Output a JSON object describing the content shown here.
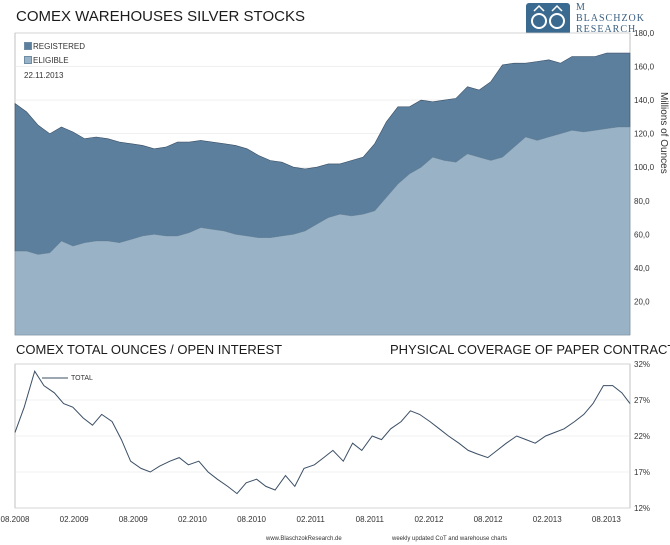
{
  "header": {
    "title": "COMEX WAREHOUSES SILVER STOCKS",
    "logo_letter": "M",
    "logo_line1": "BLASCHZOK",
    "logo_line2": "RESEARCH"
  },
  "colors": {
    "registered": "#5b7f9c",
    "eligible": "#9ab2c5",
    "line": "#3b4f66",
    "grid": "#dddddd"
  },
  "chart_data": [
    {
      "type": "area",
      "stacked": true,
      "title": "COMEX WAREHOUSES SILVER STOCKS",
      "ylabel": "Millions of Ounces",
      "ylim": [
        0,
        180
      ],
      "yticks": [
        "20,0",
        "40,0",
        "60,0",
        "80,0",
        "100,0",
        "120,0",
        "140,0",
        "160,0",
        "180,0"
      ],
      "date_label": "22.11.2013",
      "legend_position": "top-left",
      "x": [
        2008.6,
        2008.7,
        2008.8,
        2008.9,
        2009.0,
        2009.1,
        2009.2,
        2009.3,
        2009.4,
        2009.5,
        2009.6,
        2009.7,
        2009.8,
        2009.9,
        2010.0,
        2010.1,
        2010.2,
        2010.3,
        2010.4,
        2010.5,
        2010.6,
        2010.7,
        2010.8,
        2010.9,
        2011.0,
        2011.1,
        2011.2,
        2011.3,
        2011.4,
        2011.5,
        2011.6,
        2011.7,
        2011.8,
        2011.9,
        2012.0,
        2012.1,
        2012.2,
        2012.3,
        2012.4,
        2012.5,
        2012.6,
        2012.7,
        2012.8,
        2012.9,
        2013.0,
        2013.1,
        2013.2,
        2013.3,
        2013.4,
        2013.5,
        2013.6,
        2013.7,
        2013.8,
        2013.9
      ],
      "series": [
        {
          "name": "ELIGIBLE",
          "values": [
            50,
            50,
            48,
            49,
            56,
            53,
            55,
            56,
            56,
            55,
            57,
            59,
            60,
            59,
            59,
            61,
            64,
            63,
            62,
            60,
            59,
            58,
            58,
            59,
            60,
            62,
            66,
            70,
            72,
            71,
            72,
            74,
            82,
            90,
            96,
            100,
            106,
            104,
            103,
            108,
            106,
            104,
            106,
            112,
            118,
            116,
            118,
            120,
            122,
            121,
            122,
            123,
            124,
            124
          ]
        },
        {
          "name": "REGISTERED",
          "values": [
            88,
            83,
            77,
            71,
            68,
            68,
            62,
            62,
            61,
            60,
            57,
            54,
            51,
            53,
            56,
            54,
            52,
            52,
            52,
            53,
            52,
            49,
            46,
            44,
            40,
            37,
            34,
            32,
            30,
            33,
            34,
            40,
            45,
            46,
            40,
            40,
            33,
            36,
            38,
            40,
            40,
            47,
            55,
            50,
            44,
            47,
            46,
            42,
            44,
            45,
            44,
            45,
            44,
            44
          ]
        }
      ]
    },
    {
      "type": "line",
      "title": "COMEX TOTAL OUNCES / OPEN INTEREST",
      "subtitle": "PHYSICAL COVERAGE OF PAPER CONTRACTS",
      "ylim": [
        12,
        32
      ],
      "yticks": [
        "12%",
        "17%",
        "22%",
        "27%",
        "32%"
      ],
      "xticks": [
        "08.2008",
        "02.2009",
        "08.2009",
        "02.2010",
        "08.2010",
        "02.2011",
        "08.2011",
        "02.2012",
        "08.2012",
        "02.2013",
        "08.2013"
      ],
      "legend_position": "top-left",
      "series": [
        {
          "name": "TOTAL",
          "x": [
            2008.58,
            2008.66,
            2008.75,
            2008.83,
            2008.92,
            2009.0,
            2009.08,
            2009.17,
            2009.25,
            2009.33,
            2009.42,
            2009.5,
            2009.58,
            2009.67,
            2009.75,
            2009.83,
            2009.92,
            2010.0,
            2010.08,
            2010.17,
            2010.25,
            2010.33,
            2010.42,
            2010.5,
            2010.58,
            2010.67,
            2010.75,
            2010.83,
            2010.92,
            2011.0,
            2011.08,
            2011.17,
            2011.25,
            2011.33,
            2011.42,
            2011.5,
            2011.58,
            2011.67,
            2011.75,
            2011.83,
            2011.92,
            2012.0,
            2012.08,
            2012.17,
            2012.25,
            2012.33,
            2012.42,
            2012.5,
            2012.58,
            2012.67,
            2012.75,
            2012.83,
            2012.92,
            2013.0,
            2013.08,
            2013.17,
            2013.25,
            2013.33,
            2013.42,
            2013.5,
            2013.58,
            2013.67,
            2013.75,
            2013.83,
            2013.9
          ],
          "values": [
            22.5,
            26.0,
            31.0,
            29.0,
            28.0,
            26.5,
            26.0,
            24.5,
            23.5,
            25.0,
            24.0,
            21.5,
            18.5,
            17.5,
            17.0,
            17.8,
            18.5,
            19.0,
            18.0,
            18.5,
            17.0,
            16.0,
            15.0,
            14.0,
            15.5,
            16.0,
            15.0,
            14.5,
            16.5,
            15.0,
            17.5,
            18.0,
            19.0,
            20.0,
            18.5,
            21.0,
            20.0,
            22.0,
            21.5,
            23.0,
            24.0,
            25.5,
            25.0,
            24.0,
            23.0,
            22.0,
            21.0,
            20.0,
            19.5,
            19.0,
            20.0,
            21.0,
            22.0,
            21.5,
            21.0,
            22.0,
            22.5,
            23.0,
            24.0,
            25.0,
            26.5,
            29.0,
            29.0,
            28.0,
            26.5
          ]
        }
      ]
    }
  ],
  "footer": {
    "site": "www.BlaschzokResearch.de",
    "tagline": "weekly updated CoT and warehouse charts"
  }
}
